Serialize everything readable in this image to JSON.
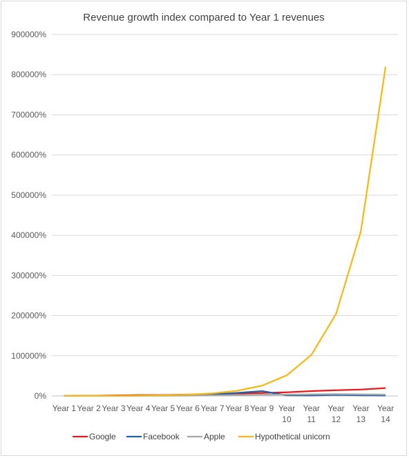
{
  "chart_data": {
    "type": "line",
    "title": "Revenue growth index compared to Year 1 revenues",
    "xlabel": "",
    "ylabel": "",
    "categories": [
      [
        "Year 1"
      ],
      [
        "Year 2"
      ],
      [
        "Year 3"
      ],
      [
        "Year 4"
      ],
      [
        "Year 5"
      ],
      [
        "Year 6"
      ],
      [
        "Year 7"
      ],
      [
        "Year 8"
      ],
      [
        "Year 9"
      ],
      [
        "Year",
        "10"
      ],
      [
        "Year",
        "11"
      ],
      [
        "Year",
        "12"
      ],
      [
        "Year",
        "13"
      ],
      [
        "Year",
        "14"
      ]
    ],
    "y_ticks": [
      "0%",
      "100000%",
      "200000%",
      "300000%",
      "400000%",
      "500000%",
      "600000%",
      "700000%",
      "800000%",
      "900000%"
    ],
    "ylim": [
      0,
      900000
    ],
    "grid": true,
    "legend_position": "bottom",
    "series": [
      {
        "name": "Google",
        "color": "#e8191b",
        "values": [
          100,
          300,
          1200,
          2000,
          2300,
          3400,
          4500,
          6000,
          7300,
          9100,
          12000,
          14000,
          16000,
          19500
        ]
      },
      {
        "name": "Facebook",
        "color": "#1f5fa8",
        "values": [
          100,
          300,
          500,
          900,
          1600,
          2600,
          4000,
          7500,
          12000,
          1500,
          1000,
          2500,
          1500,
          1000
        ]
      },
      {
        "name": "Apple",
        "color": "#a6a6a6",
        "values": [
          100,
          150,
          300,
          400,
          600,
          900,
          1500,
          2200,
          3000,
          3500,
          4000,
          4500,
          4000,
          3500
        ]
      },
      {
        "name": "Hypothetical unicorn",
        "color": "#f5b915",
        "values": [
          100,
          200,
          400,
          800,
          1600,
          3200,
          6400,
          12800,
          25600,
          51200,
          102400,
          204800,
          409600,
          819200
        ]
      }
    ]
  }
}
